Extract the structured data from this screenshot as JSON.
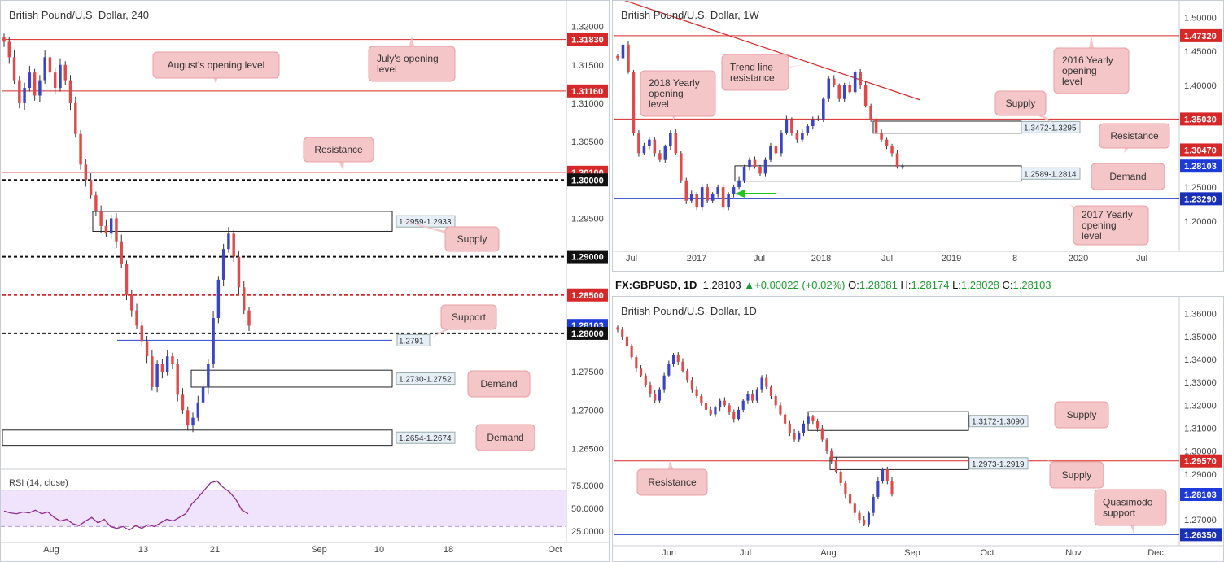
{
  "infobar": {
    "symbol": "FX:GBPUSD, 1D",
    "last": "1.28103",
    "arrow": "▲",
    "change": "+0.00022 (+0.02%)",
    "o_label": "O:",
    "o": "1.28081",
    "h_label": "H:",
    "h": "1.28174",
    "l_label": "L:",
    "l": "1.28028",
    "c_label": "C:",
    "c": "1.28103"
  },
  "colors": {
    "up": "#3a45c4",
    "down": "#e04a4a",
    "resistance": "#d62828",
    "support": "#2a44c8",
    "note_bg": "#f5c6c8",
    "note_border": "#e8a0a4",
    "rsi_band": "#efe4fb",
    "rsi_line": "#8e2a91"
  },
  "chart_data": [
    {
      "type": "candlestick",
      "title": "British Pound/U.S. Dollar, 240",
      "yticks": [
        "1.32000",
        "1.31500",
        "1.31000",
        "1.30500",
        "1.30000",
        "1.29500",
        "1.29000",
        "1.28500",
        "1.28000",
        "1.27500",
        "1.27000",
        "1.26500"
      ],
      "ylim": [
        1.2625,
        1.3225
      ],
      "xticks": [
        "Aug",
        "13",
        "21",
        "Sep",
        "10",
        "18",
        "Oct"
      ],
      "price_tags": [
        {
          "value": 1.3183,
          "label": "1.31830",
          "style": "red"
        },
        {
          "value": 1.3116,
          "label": "1.31160",
          "style": "red"
        },
        {
          "value": 1.301,
          "label": "1.30100",
          "style": "red"
        },
        {
          "value": 1.3,
          "label": "1.30000",
          "style": "black"
        },
        {
          "value": 1.29,
          "label": "1.29000",
          "style": "black"
        },
        {
          "value": 1.285,
          "label": "1.28500",
          "style": "red"
        },
        {
          "value": 1.28103,
          "label": "1.28103",
          "style": "blue"
        },
        {
          "value": 1.28,
          "label": "1.28000",
          "style": "black"
        }
      ],
      "levels": [
        {
          "value": 1.3183,
          "kind": "resistance"
        },
        {
          "value": 1.3116,
          "kind": "resistance"
        },
        {
          "value": 1.301,
          "kind": "resistance"
        },
        {
          "value": 1.3,
          "kind": "round"
        },
        {
          "value": 1.29,
          "kind": "round"
        },
        {
          "value": 1.285,
          "kind": "mid"
        },
        {
          "value": 1.28,
          "kind": "round"
        },
        {
          "value": 1.2791,
          "kind": "support"
        }
      ],
      "zones": [
        {
          "label": "1.2959-1.2933",
          "top": 1.2959,
          "bottom": 1.2933
        },
        {
          "label": "1.2730-1.2752",
          "top": 1.2752,
          "bottom": 1.273
        },
        {
          "label": "1.2654-1.2674",
          "top": 1.2674,
          "bottom": 1.2654
        }
      ],
      "support_label": "1.2791",
      "annotations": [
        "August's opening level",
        "July's opening level",
        "Resistance",
        "Supply",
        "Support",
        "Demand",
        "Demand"
      ],
      "close_series": [
        1.318,
        1.316,
        1.313,
        1.31,
        1.312,
        1.314,
        1.311,
        1.313,
        1.316,
        1.314,
        1.312,
        1.315,
        1.313,
        1.31,
        1.306,
        1.302,
        1.3,
        1.298,
        1.296,
        1.294,
        1.293,
        1.295,
        1.292,
        1.289,
        1.285,
        1.283,
        1.281,
        1.279,
        1.277,
        1.273,
        1.276,
        1.275,
        1.277,
        1.276,
        1.272,
        1.27,
        1.268,
        1.269,
        1.271,
        1.273,
        1.276,
        1.282,
        1.287,
        1.291,
        1.293,
        1.29,
        1.286,
        1.283,
        1.281
      ],
      "rsi": {
        "label": "RSI (14, close)",
        "yticks": [
          "75.0000",
          "50.0000",
          "25.0000"
        ],
        "ylim": [
          20,
          90
        ],
        "band": [
          30,
          70
        ],
        "values": [
          47,
          45,
          44,
          46,
          45,
          48,
          44,
          46,
          40,
          36,
          38,
          33,
          31,
          36,
          40,
          34,
          38,
          30,
          28,
          30,
          26,
          31,
          28,
          32,
          30,
          34,
          38,
          36,
          40,
          44,
          55,
          62,
          70,
          78,
          80,
          73,
          68,
          60,
          48,
          44
        ]
      }
    },
    {
      "type": "candlestick",
      "title": "British Pound/U.S. Dollar, 1W",
      "yticks": [
        "1.50000",
        "1.45000",
        "1.40000",
        "1.35000",
        "1.30000",
        "1.25000",
        "1.20000"
      ],
      "ylim": [
        1.165,
        1.515
      ],
      "xticks": [
        "Jul",
        "2017",
        "Jul",
        "2018",
        "Jul",
        "2019",
        "8",
        "2020",
        "Jul"
      ],
      "price_tags": [
        {
          "value": 1.4732,
          "label": "1.47320",
          "style": "red"
        },
        {
          "value": 1.3503,
          "label": "1.35030",
          "style": "red"
        },
        {
          "value": 1.3047,
          "label": "1.30470",
          "style": "red"
        },
        {
          "value": 1.28103,
          "label": "1.28103",
          "style": "blue"
        },
        {
          "value": 1.2329,
          "label": "1.23290",
          "style": "navy"
        }
      ],
      "levels": [
        {
          "value": 1.4732,
          "kind": "resistance"
        },
        {
          "value": 1.3503,
          "kind": "resistance"
        },
        {
          "value": 1.3047,
          "kind": "resistance"
        },
        {
          "value": 1.2329,
          "kind": "support"
        }
      ],
      "zones": [
        {
          "label": "1.3472-1.3295",
          "top": 1.3472,
          "bottom": 1.3295
        },
        {
          "label": "1.2589-1.2814",
          "top": 1.2814,
          "bottom": 1.2589
        }
      ],
      "annotations": [
        "Trend line resistance",
        "2018 Yearly opening level",
        "2016 Yearly opening level",
        "Supply",
        "Resistance",
        "Demand",
        "2017 Yearly opening level"
      ],
      "close_series": [
        1.44,
        1.46,
        1.42,
        1.33,
        1.3,
        1.31,
        1.32,
        1.3,
        1.29,
        1.31,
        1.33,
        1.3,
        1.26,
        1.23,
        1.24,
        1.22,
        1.25,
        1.23,
        1.24,
        1.25,
        1.22,
        1.24,
        1.25,
        1.26,
        1.28,
        1.29,
        1.28,
        1.27,
        1.29,
        1.31,
        1.3,
        1.33,
        1.35,
        1.33,
        1.32,
        1.33,
        1.34,
        1.35,
        1.35,
        1.38,
        1.41,
        1.4,
        1.38,
        1.4,
        1.39,
        1.42,
        1.4,
        1.37,
        1.35,
        1.33,
        1.32,
        1.31,
        1.3,
        1.28,
        1.281
      ]
    },
    {
      "type": "candlestick",
      "title": "British Pound/U.S. Dollar, 1D",
      "yticks": [
        "1.36000",
        "1.35000",
        "1.34000",
        "1.33000",
        "1.32000",
        "1.31000",
        "1.30000",
        "1.29000",
        "1.28000",
        "1.27000"
      ],
      "ylim": [
        1.2615,
        1.3645
      ],
      "xticks": [
        "Jun",
        "Jul",
        "Aug",
        "Sep",
        "Oct",
        "Nov",
        "Dec"
      ],
      "price_tags": [
        {
          "value": 1.2957,
          "label": "1.29570",
          "style": "red"
        },
        {
          "value": 1.28103,
          "label": "1.28103",
          "style": "blue"
        },
        {
          "value": 1.2635,
          "label": "1.26350",
          "style": "navy"
        }
      ],
      "levels": [
        {
          "value": 1.2957,
          "kind": "resistance"
        },
        {
          "value": 1.2635,
          "kind": "support"
        }
      ],
      "zones": [
        {
          "label": "1.3172-1.3090",
          "top": 1.3172,
          "bottom": 1.309
        },
        {
          "label": "1.2973-1.2919",
          "top": 1.2973,
          "bottom": 1.2919
        }
      ],
      "annotations": [
        "Supply",
        "Supply",
        "Resistance",
        "Quasimodo support"
      ],
      "close_series": [
        1.353,
        1.35,
        1.346,
        1.341,
        1.336,
        1.333,
        1.329,
        1.325,
        1.322,
        1.327,
        1.333,
        1.338,
        1.342,
        1.339,
        1.335,
        1.331,
        1.327,
        1.324,
        1.321,
        1.318,
        1.316,
        1.319,
        1.322,
        1.32,
        1.317,
        1.314,
        1.318,
        1.322,
        1.325,
        1.322,
        1.327,
        1.332,
        1.328,
        1.324,
        1.32,
        1.316,
        1.312,
        1.308,
        1.305,
        1.308,
        1.312,
        1.315,
        1.313,
        1.31,
        1.305,
        1.3,
        1.296,
        1.291,
        1.286,
        1.281,
        1.277,
        1.273,
        1.27,
        1.268,
        1.273,
        1.28,
        1.287,
        1.292,
        1.287,
        1.281
      ]
    }
  ]
}
